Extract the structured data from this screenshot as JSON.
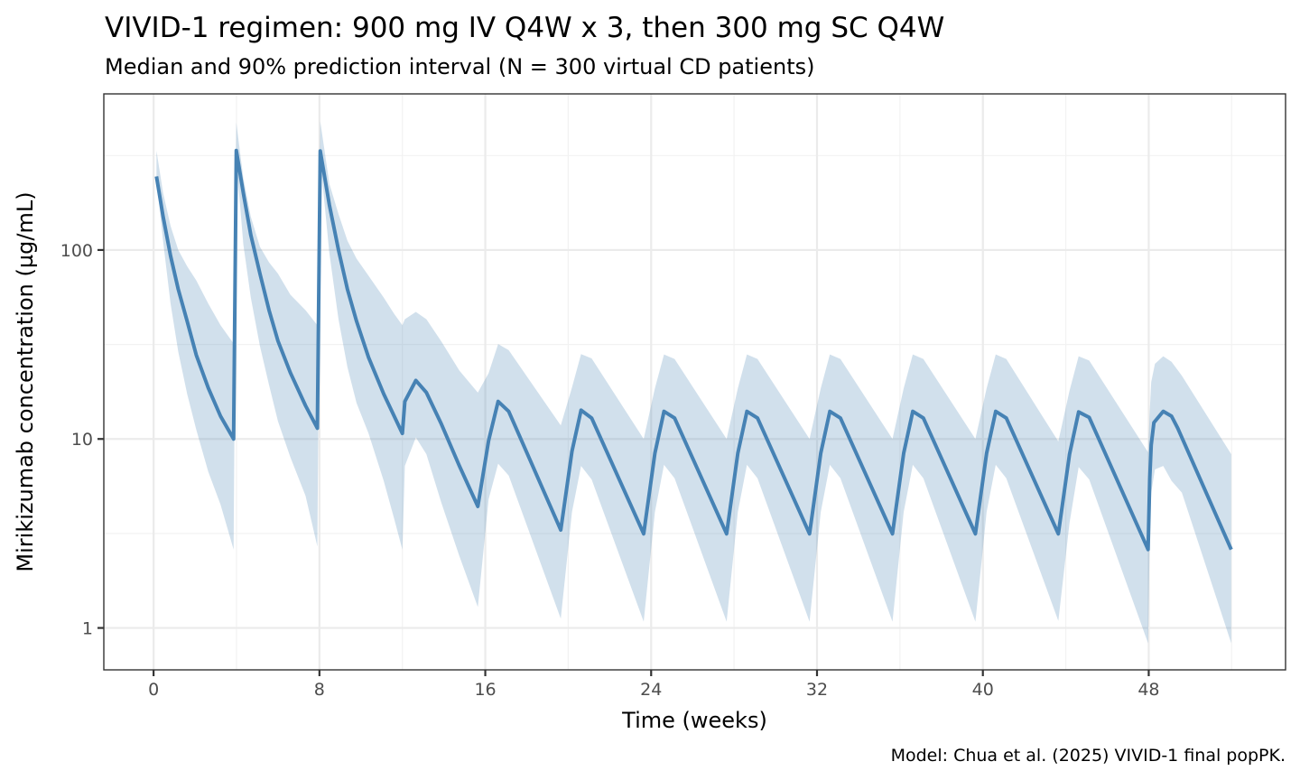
{
  "chart_data": {
    "type": "line",
    "title": "VIVID-1 regimen: 900 mg IV Q4W x 3, then 300 mg SC Q4W",
    "subtitle": "Median and 90% prediction interval (N = 300 virtual CD patients)",
    "xlabel": "Time (weeks)",
    "ylabel": "Mirikizumab concentration (µg/mL)",
    "caption": "Model: Chua et al. (2025) VIVID-1 final popPK.",
    "x_scale": "linear",
    "y_scale": "log10",
    "xlim": [
      -2.4,
      54.6
    ],
    "ylim": [
      0.6,
      670
    ],
    "x_ticks": [
      0,
      8,
      16,
      24,
      32,
      40,
      48
    ],
    "x_tick_labels": [
      "0",
      "8",
      "16",
      "24",
      "32",
      "40",
      "48"
    ],
    "x_minor_ticks": [
      4,
      12,
      20,
      28,
      36,
      44,
      52
    ],
    "y_ticks": [
      1,
      10,
      100
    ],
    "y_tick_labels": [
      "1",
      "10",
      "100"
    ],
    "y_minor_ticks": [
      0.316,
      3.16,
      31.6,
      316
    ],
    "grid": true,
    "legend": "none",
    "colors": {
      "line": "#4682b4",
      "band": "#4682b4",
      "band_opacity": 0.25
    },
    "series": [
      {
        "name": "Median",
        "kind": "line",
        "points": [
          [
            0.14,
            245
          ],
          [
            0.46,
            150
          ],
          [
            0.82,
            93
          ],
          [
            1.19,
            62
          ],
          [
            1.62,
            42
          ],
          [
            2.06,
            27.8
          ],
          [
            2.64,
            18.6
          ],
          [
            3.23,
            13.2
          ],
          [
            3.86,
            10.0
          ],
          [
            3.99,
            336
          ],
          [
            4.33,
            200
          ],
          [
            4.69,
            120
          ],
          [
            5.13,
            75
          ],
          [
            5.57,
            48
          ],
          [
            6.0,
            33
          ],
          [
            6.6,
            22.4
          ],
          [
            7.33,
            15
          ],
          [
            7.9,
            11.4
          ],
          [
            8.04,
            334
          ],
          [
            8.48,
            173
          ],
          [
            8.92,
            100
          ],
          [
            9.35,
            62
          ],
          [
            9.79,
            42
          ],
          [
            10.37,
            27
          ],
          [
            11.1,
            17.3
          ],
          [
            12.0,
            10.7
          ],
          [
            12.12,
            15.8
          ],
          [
            12.65,
            20.4
          ],
          [
            13.16,
            17.6
          ],
          [
            13.88,
            12.0
          ],
          [
            14.75,
            7.2
          ],
          [
            15.64,
            4.4
          ],
          [
            16.16,
            9.8
          ],
          [
            16.62,
            15.8
          ],
          [
            17.13,
            14.0
          ],
          [
            19.64,
            3.3
          ],
          [
            20.18,
            8.6
          ],
          [
            20.62,
            14.2
          ],
          [
            21.13,
            12.9
          ],
          [
            23.64,
            3.15
          ],
          [
            24.18,
            8.4
          ],
          [
            24.62,
            14.0
          ],
          [
            25.13,
            12.9
          ],
          [
            27.64,
            3.15
          ],
          [
            28.18,
            8.4
          ],
          [
            28.62,
            14.0
          ],
          [
            29.13,
            12.9
          ],
          [
            31.64,
            3.15
          ],
          [
            32.18,
            8.4
          ],
          [
            32.62,
            14.0
          ],
          [
            33.13,
            12.9
          ],
          [
            35.64,
            3.15
          ],
          [
            36.18,
            8.4
          ],
          [
            36.62,
            14.0
          ],
          [
            37.13,
            12.9
          ],
          [
            39.64,
            3.15
          ],
          [
            40.18,
            8.4
          ],
          [
            40.62,
            14.0
          ],
          [
            41.13,
            12.9
          ],
          [
            43.64,
            3.15
          ],
          [
            44.18,
            8.3
          ],
          [
            44.62,
            13.9
          ],
          [
            45.13,
            13.0
          ],
          [
            47.97,
            2.6
          ],
          [
            48.05,
            6.2
          ],
          [
            48.12,
            9.3
          ],
          [
            48.25,
            12.2
          ],
          [
            48.7,
            14.0
          ],
          [
            49.1,
            13.2
          ],
          [
            49.4,
            11.4
          ],
          [
            51.98,
            2.6
          ]
        ]
      },
      {
        "name": "90% prediction interval",
        "kind": "ribbon",
        "points": [
          [
            0.14,
            240,
            335
          ],
          [
            0.46,
            111,
            200
          ],
          [
            0.82,
            52,
            134
          ],
          [
            1.19,
            29,
            100
          ],
          [
            1.62,
            17.3,
            82
          ],
          [
            2.06,
            11.2,
            69
          ],
          [
            2.64,
            6.7,
            52
          ],
          [
            3.23,
            4.5,
            40
          ],
          [
            3.86,
            2.6,
            32
          ],
          [
            3.99,
            300,
            473
          ],
          [
            4.33,
            107,
            240
          ],
          [
            4.69,
            56,
            150
          ],
          [
            5.13,
            31,
            104
          ],
          [
            5.57,
            19.3,
            86
          ],
          [
            6.0,
            12.4,
            75
          ],
          [
            6.6,
            8.0,
            58
          ],
          [
            7.33,
            5.0,
            48
          ],
          [
            7.9,
            2.7,
            40
          ],
          [
            8.04,
            300,
            480
          ],
          [
            8.48,
            96,
            224
          ],
          [
            8.92,
            43,
            155
          ],
          [
            9.35,
            24,
            112
          ],
          [
            9.79,
            15.5,
            90
          ],
          [
            10.37,
            10.7,
            73
          ],
          [
            11.1,
            6.0,
            56
          ],
          [
            11.6,
            3.8,
            46
          ],
          [
            12.0,
            2.6,
            40
          ],
          [
            12.12,
            7.2,
            43
          ],
          [
            12.65,
            10.2,
            47
          ],
          [
            13.16,
            8.3,
            43
          ],
          [
            13.88,
            4.6,
            32.8
          ],
          [
            14.75,
            2.4,
            23
          ],
          [
            15.64,
            1.29,
            17.6
          ],
          [
            16.16,
            4.8,
            22.3
          ],
          [
            16.62,
            7.4,
            31.8
          ],
          [
            17.13,
            6.4,
            29.5
          ],
          [
            19.64,
            1.12,
            11.8
          ],
          [
            20.18,
            4.1,
            18.7
          ],
          [
            20.62,
            7.2,
            28.1
          ],
          [
            21.13,
            6.1,
            26.7
          ],
          [
            23.64,
            1.08,
            10.0
          ],
          [
            24.18,
            4.1,
            18.5
          ],
          [
            24.62,
            7.3,
            28.0
          ],
          [
            25.13,
            6.2,
            26.5
          ],
          [
            27.64,
            1.08,
            10.0
          ],
          [
            28.18,
            4.1,
            18.5
          ],
          [
            28.62,
            7.3,
            28.0
          ],
          [
            29.13,
            6.2,
            26.5
          ],
          [
            31.64,
            1.08,
            10.0
          ],
          [
            32.18,
            4.1,
            18.5
          ],
          [
            32.62,
            7.3,
            28.0
          ],
          [
            33.13,
            6.2,
            26.5
          ],
          [
            35.64,
            1.08,
            10.0
          ],
          [
            36.18,
            4.1,
            18.5
          ],
          [
            36.62,
            7.3,
            28.0
          ],
          [
            37.13,
            6.2,
            26.5
          ],
          [
            39.64,
            1.08,
            10.0
          ],
          [
            40.18,
            4.1,
            18.5
          ],
          [
            40.62,
            7.3,
            28.0
          ],
          [
            41.13,
            6.2,
            26.5
          ],
          [
            43.64,
            1.09,
            9.7
          ],
          [
            44.18,
            3.6,
            18.0
          ],
          [
            44.62,
            7.1,
            27.4
          ],
          [
            45.13,
            6.1,
            26.0
          ],
          [
            47.97,
            0.83,
            8.5
          ],
          [
            48.05,
            3.0,
            14.0
          ],
          [
            48.12,
            5.2,
            20.0
          ],
          [
            48.3,
            6.9,
            25.0
          ],
          [
            48.7,
            7.2,
            27.4
          ],
          [
            49.1,
            6.0,
            25.6
          ],
          [
            49.6,
            5.2,
            21.6
          ],
          [
            51.98,
            0.83,
            8.3
          ]
        ]
      }
    ]
  }
}
